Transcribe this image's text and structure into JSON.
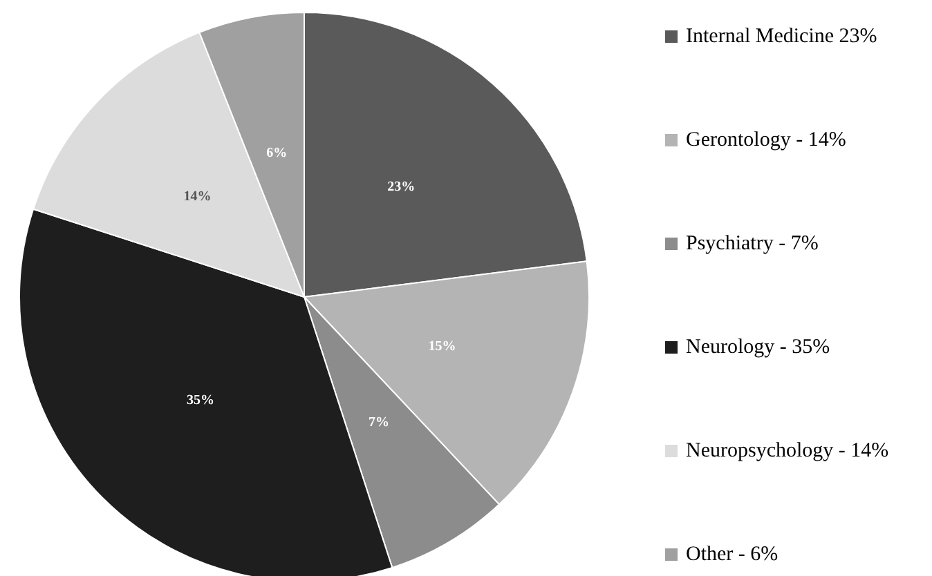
{
  "chart_data": {
    "type": "pie",
    "categories": [
      "Internal Medicine 23%",
      "Gerontology - 14%",
      "Psychiatry - 7%",
      "Neurology - 35%",
      "Neuropsychology - 14%",
      "Other - 6%"
    ],
    "values": [
      23,
      15,
      7,
      35,
      14,
      6
    ],
    "value_labels": [
      "23%",
      "15%",
      "7%",
      "35%",
      "14%",
      "6%"
    ],
    "colors": [
      "#5a5a5a",
      "#b4b4b4",
      "#8c8c8c",
      "#1e1e1e",
      "#dcdcdc",
      "#a0a0a0"
    ],
    "legend": "right"
  }
}
